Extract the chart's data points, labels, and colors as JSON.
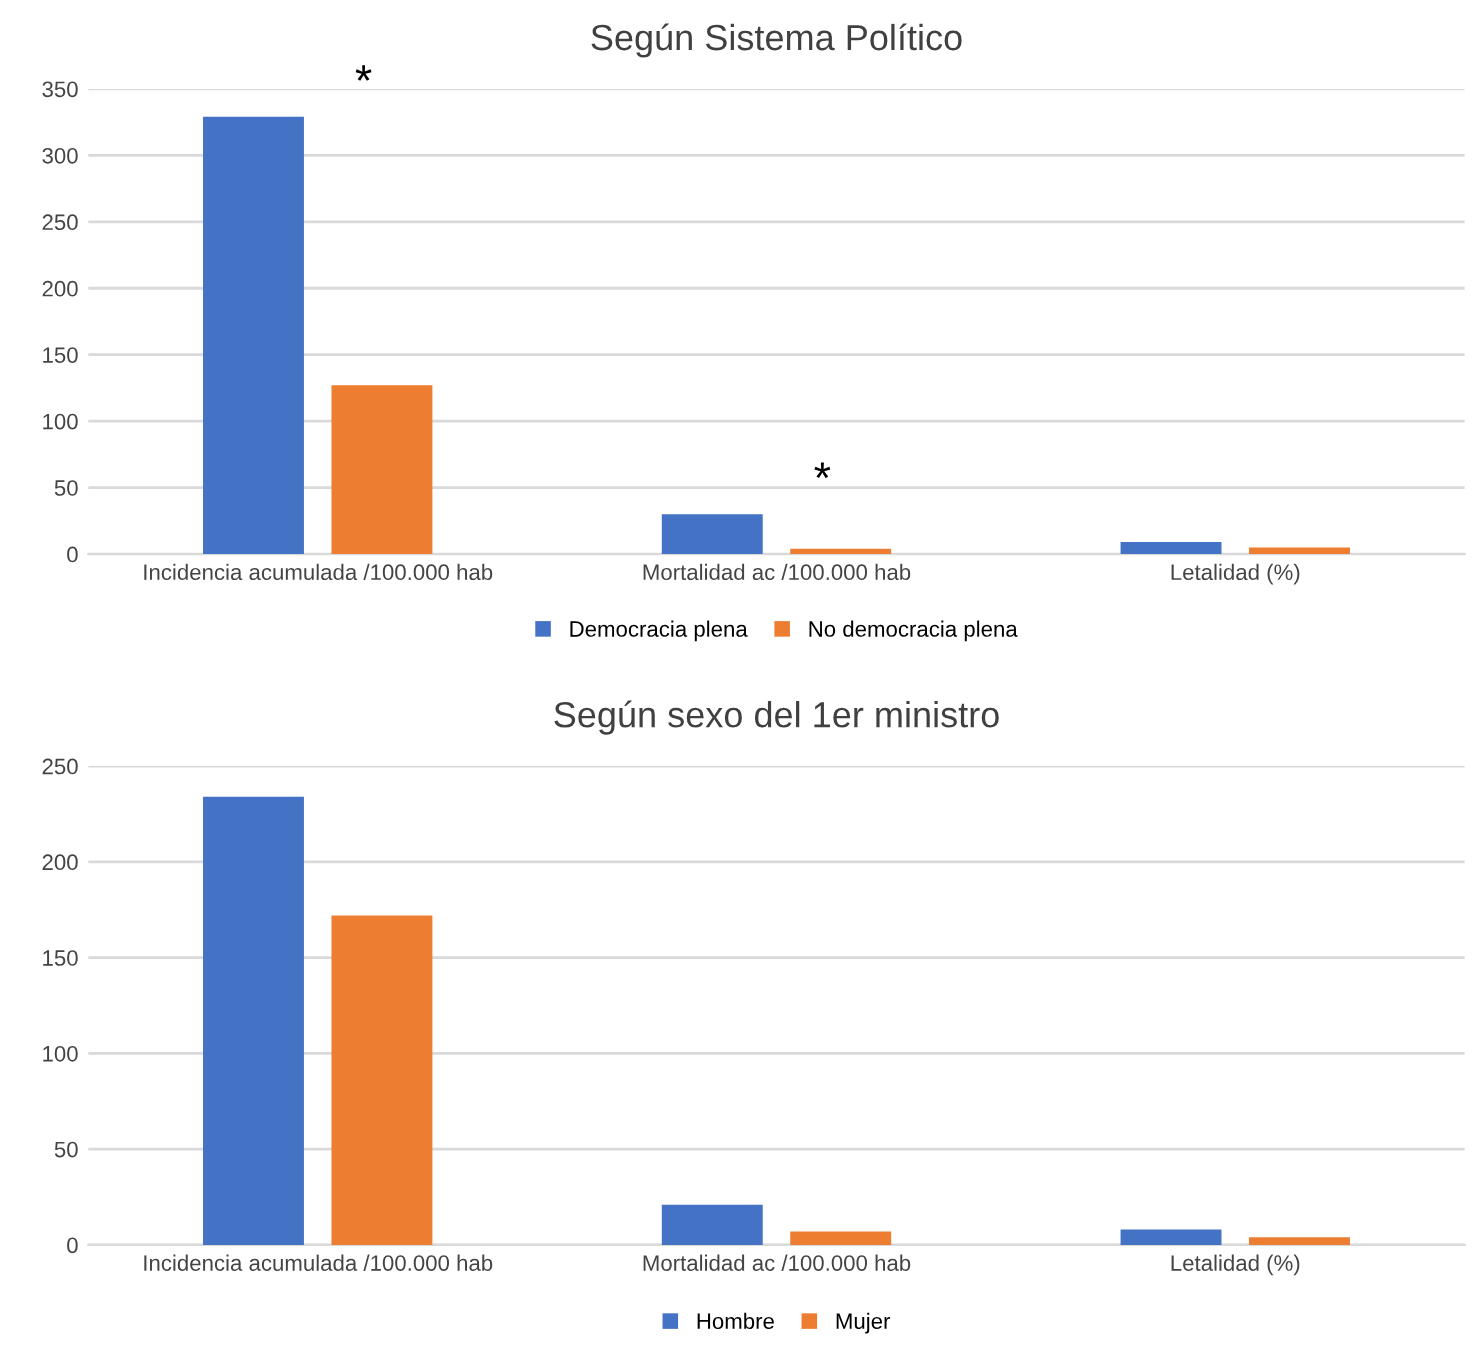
{
  "chart_data": [
    {
      "type": "bar",
      "title": "Según Sistema Político",
      "categories": [
        "Incidencia acumulada /100.000 hab",
        "Mortalidad ac /100.000 hab",
        "Letalidad (%)"
      ],
      "series": [
        {
          "name": "Democracia plena",
          "color": "#4472c4",
          "values": [
            329,
            30,
            9
          ]
        },
        {
          "name": "No democracia plena",
          "color": "#ed7d31",
          "values": [
            127,
            4,
            5
          ]
        }
      ],
      "ylim": [
        0,
        350
      ],
      "yticks": [
        0,
        50,
        100,
        150,
        200,
        250,
        300,
        350
      ],
      "grid": "y",
      "legend": "bottom",
      "annotations": [
        "*",
        "*"
      ]
    },
    {
      "type": "bar",
      "title": "Según sexo del 1er ministro",
      "categories": [
        "Incidencia acumulada /100.000 hab",
        "Mortalidad ac /100.000 hab",
        "Letalidad (%)"
      ],
      "series": [
        {
          "name": "Hombre",
          "color": "#4472c4",
          "values": [
            234,
            21,
            8
          ]
        },
        {
          "name": "Mujer",
          "color": "#ed7d31",
          "values": [
            172,
            7,
            4
          ]
        }
      ],
      "ylim": [
        0,
        250
      ],
      "yticks": [
        0,
        50,
        100,
        150,
        200,
        250
      ],
      "grid": "y",
      "legend": "bottom"
    }
  ]
}
